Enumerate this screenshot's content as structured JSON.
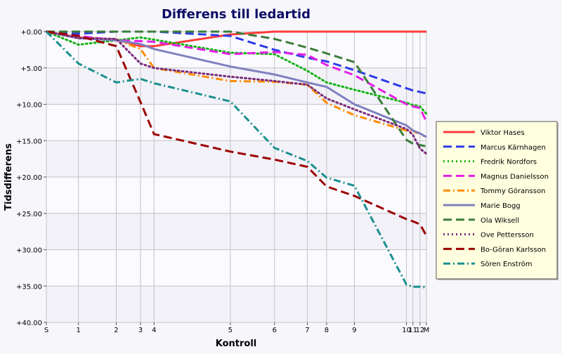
{
  "chart_data": {
    "type": "line",
    "title": "Differens till ledartid",
    "xlabel": "Kontroll",
    "ylabel": "Tidsdifferens",
    "x_tick_labels": [
      "S",
      "1",
      "2",
      "3",
      "4",
      "5",
      "6",
      "7",
      "8",
      "9",
      "10",
      "11",
      "12",
      "M"
    ],
    "x_cumulative": [
      0,
      45,
      98,
      132,
      151,
      258,
      320,
      366,
      393,
      432,
      505,
      514,
      524,
      533
    ],
    "y_ticks": [
      "+0.00",
      "+5.00",
      "+10.00",
      "+15.00",
      "+20.00",
      "+25.00",
      "+30.00",
      "+35.00",
      "+40.00"
    ],
    "ylim": [
      0,
      40
    ],
    "y_inverted": true,
    "grid": true,
    "legend_position": "right",
    "series": [
      {
        "name": "Viktor Hases",
        "color": "#ff3b3b",
        "dash": "solid",
        "values": [
          0,
          0.8,
          1.1,
          2.0,
          2.0,
          0.4,
          0,
          0,
          0,
          0,
          0,
          0,
          0,
          0
        ]
      },
      {
        "name": "Marcus Kärnhagen",
        "color": "#2e3be6",
        "dash": "dashed",
        "values": [
          0,
          0.3,
          0,
          0,
          0,
          0.6,
          2.5,
          3.6,
          4.1,
          5.3,
          7.8,
          8.1,
          8.3,
          8.5
        ]
      },
      {
        "name": "Fredrik Nordfors",
        "color": "#17b317",
        "dash": "dotted",
        "values": [
          0,
          1.8,
          1.2,
          0.8,
          1.1,
          2.9,
          3.1,
          5.4,
          7.0,
          8.0,
          9.8,
          10.1,
          10.3,
          11.3
        ]
      },
      {
        "name": "Magnus Danielsson",
        "color": "#e61ee6",
        "dash": "dashed",
        "values": [
          0,
          0.6,
          1.2,
          1.3,
          1.4,
          3.1,
          2.8,
          3.2,
          4.6,
          6.0,
          10.0,
          10.3,
          10.5,
          12.4
        ]
      },
      {
        "name": "Tommy Göransson",
        "color": "#ff8c00",
        "dash": "dashdot",
        "values": [
          0,
          0.9,
          1.1,
          2.4,
          5.0,
          6.8,
          6.9,
          7.3,
          9.8,
          11.5,
          13.6,
          13.8,
          14.0,
          14.6
        ]
      },
      {
        "name": "Marie Bogg",
        "color": "#8080c0",
        "dash": "solid",
        "values": [
          0,
          0.9,
          1.2,
          1.7,
          2.4,
          4.8,
          5.9,
          7.0,
          7.6,
          10.0,
          12.9,
          13.6,
          14.0,
          14.5
        ]
      },
      {
        "name": "Ola Wiksell",
        "color": "#3a7d3a",
        "dash": "dashed",
        "values": [
          0,
          0,
          0,
          0,
          0,
          0,
          1.0,
          2.2,
          3.0,
          4.2,
          14.9,
          15.4,
          15.6,
          15.8
        ]
      },
      {
        "name": "Ove Pettersson",
        "color": "#7a2a7a",
        "dash": "dotted",
        "values": [
          0,
          0.9,
          1.0,
          4.4,
          5.0,
          6.2,
          6.8,
          7.3,
          9.2,
          10.7,
          13.4,
          14.2,
          16.1,
          16.8
        ]
      },
      {
        "name": "Bo-Göran Karlsson",
        "color": "#9c0000",
        "dash": "dashed",
        "values": [
          0,
          0.6,
          2.0,
          9.7,
          14.1,
          16.5,
          17.6,
          18.6,
          21.3,
          22.6,
          25.8,
          26.1,
          26.5,
          28.1
        ]
      },
      {
        "name": "Sören Enström",
        "color": "#1a8f8f",
        "dash": "dashdot",
        "values": [
          0,
          4.4,
          7.0,
          6.5,
          7.1,
          9.6,
          16.0,
          17.8,
          20.1,
          21.2,
          34.8,
          35.1,
          35.1,
          35.2
        ]
      }
    ]
  }
}
